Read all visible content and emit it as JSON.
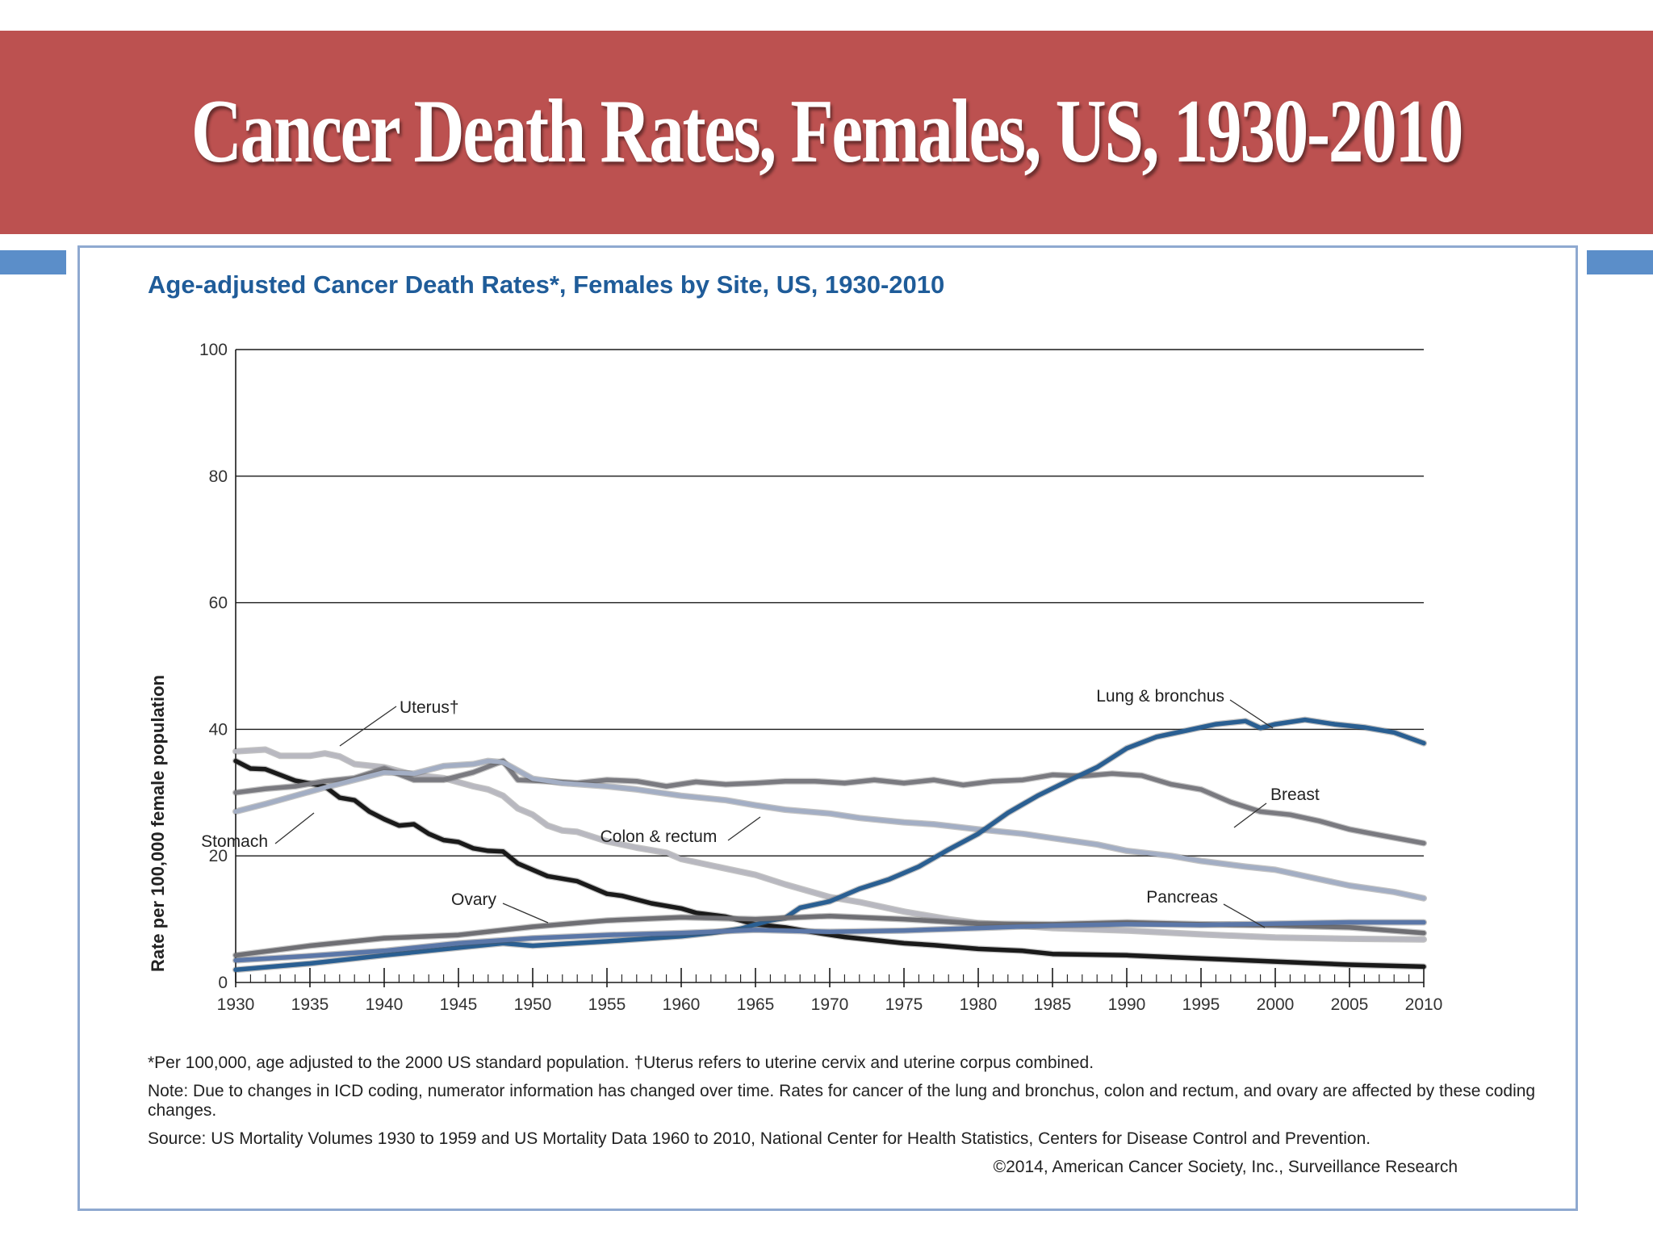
{
  "slide": {
    "title": "Cancer Death Rates, Females, US, 1930-2010",
    "colors": {
      "banner": "#bc5150",
      "accent": "#5b8ec9",
      "panel_border": "#8fa9d0",
      "chart_title": "#1f5c99"
    }
  },
  "notes": {
    "footnote": "*Per 100,000, age adjusted to the 2000 US standard population. †Uterus refers to uterine cervix and uterine corpus combined.",
    "note": "Note: Due to changes in ICD coding, numerator information has changed over time. Rates for cancer of the lung and bronchus, colon and rectum, and ovary are affected by these coding changes.",
    "source": "Source: US Mortality Volumes 1930 to 1959 and US Mortality Data 1960 to 2010, National Center for Health Statistics, Centers for Disease Control and Prevention.",
    "credit": "©2014, American Cancer Society, Inc., Surveillance Research"
  },
  "chart_data": {
    "type": "line",
    "title": "Age-adjusted Cancer Death Rates*, Females by Site, US, 1930-2010",
    "xlabel": "",
    "ylabel": "Rate per 100,000 female population",
    "xlim": [
      1930,
      2010
    ],
    "ylim": [
      0,
      100
    ],
    "grid": true,
    "x_ticks": [
      1930,
      1935,
      1940,
      1945,
      1950,
      1955,
      1960,
      1965,
      1970,
      1975,
      1980,
      1985,
      1990,
      1995,
      2000,
      2005,
      2010
    ],
    "y_ticks": [
      0,
      20,
      40,
      60,
      80,
      100
    ],
    "series": [
      {
        "name": "Uterus†",
        "color": "#b8b8c0",
        "points": [
          [
            1930,
            36.5
          ],
          [
            1932,
            36.8
          ],
          [
            1933,
            35.8
          ],
          [
            1935,
            35.8
          ],
          [
            1936,
            36.2
          ],
          [
            1937,
            35.7
          ],
          [
            1938,
            34.5
          ],
          [
            1940,
            34.0
          ],
          [
            1942,
            32.8
          ],
          [
            1944,
            32.3
          ],
          [
            1946,
            31.0
          ],
          [
            1947,
            30.5
          ],
          [
            1948,
            29.5
          ],
          [
            1949,
            27.5
          ],
          [
            1950,
            26.5
          ],
          [
            1951,
            24.8
          ],
          [
            1952,
            24.0
          ],
          [
            1953,
            23.8
          ],
          [
            1955,
            22.3
          ],
          [
            1957,
            21.3
          ],
          [
            1959,
            20.5
          ],
          [
            1960,
            19.5
          ],
          [
            1962,
            18.5
          ],
          [
            1965,
            17.0
          ],
          [
            1967,
            15.5
          ],
          [
            1970,
            13.5
          ],
          [
            1972,
            12.7
          ],
          [
            1975,
            11.2
          ],
          [
            1978,
            10.0
          ],
          [
            1980,
            9.4
          ],
          [
            1985,
            8.6
          ],
          [
            1990,
            8.2
          ],
          [
            1995,
            7.6
          ],
          [
            2000,
            7.1
          ],
          [
            2005,
            6.9
          ],
          [
            2010,
            6.8
          ]
        ]
      },
      {
        "name": "Stomach",
        "color": "#1a1a1a",
        "points": [
          [
            1930,
            35.0
          ],
          [
            1931,
            33.8
          ],
          [
            1932,
            33.7
          ],
          [
            1934,
            31.9
          ],
          [
            1936,
            31.0
          ],
          [
            1937,
            29.2
          ],
          [
            1938,
            28.8
          ],
          [
            1939,
            27.0
          ],
          [
            1940,
            25.8
          ],
          [
            1941,
            24.8
          ],
          [
            1942,
            25.0
          ],
          [
            1943,
            23.5
          ],
          [
            1944,
            22.5
          ],
          [
            1945,
            22.2
          ],
          [
            1946,
            21.2
          ],
          [
            1947,
            20.8
          ],
          [
            1948,
            20.7
          ],
          [
            1949,
            18.8
          ],
          [
            1951,
            16.8
          ],
          [
            1953,
            16.0
          ],
          [
            1955,
            14.0
          ],
          [
            1956,
            13.7
          ],
          [
            1958,
            12.5
          ],
          [
            1960,
            11.7
          ],
          [
            1961,
            11.0
          ],
          [
            1963,
            10.4
          ],
          [
            1965,
            9.2
          ],
          [
            1967,
            8.7
          ],
          [
            1969,
            7.9
          ],
          [
            1971,
            7.2
          ],
          [
            1973,
            6.7
          ],
          [
            1975,
            6.2
          ],
          [
            1977,
            5.9
          ],
          [
            1980,
            5.3
          ],
          [
            1983,
            5.0
          ],
          [
            1985,
            4.5
          ],
          [
            1990,
            4.3
          ],
          [
            1995,
            3.8
          ],
          [
            2000,
            3.3
          ],
          [
            2005,
            2.8
          ],
          [
            2010,
            2.5
          ]
        ]
      },
      {
        "name": "Breast",
        "color": "#7a7a80",
        "points": [
          [
            1930,
            30.0
          ],
          [
            1932,
            30.6
          ],
          [
            1934,
            31.0
          ],
          [
            1936,
            31.8
          ],
          [
            1938,
            32.3
          ],
          [
            1940,
            33.8
          ],
          [
            1942,
            32.0
          ],
          [
            1944,
            32.0
          ],
          [
            1946,
            33.2
          ],
          [
            1948,
            35.0
          ],
          [
            1949,
            32.0
          ],
          [
            1951,
            31.8
          ],
          [
            1953,
            31.5
          ],
          [
            1955,
            32.0
          ],
          [
            1957,
            31.8
          ],
          [
            1959,
            31.0
          ],
          [
            1961,
            31.7
          ],
          [
            1963,
            31.3
          ],
          [
            1965,
            31.5
          ],
          [
            1967,
            31.8
          ],
          [
            1969,
            31.8
          ],
          [
            1971,
            31.5
          ],
          [
            1973,
            32.0
          ],
          [
            1975,
            31.5
          ],
          [
            1977,
            32.0
          ],
          [
            1979,
            31.2
          ],
          [
            1981,
            31.8
          ],
          [
            1983,
            32.0
          ],
          [
            1985,
            32.8
          ],
          [
            1987,
            32.6
          ],
          [
            1989,
            33.0
          ],
          [
            1991,
            32.7
          ],
          [
            1993,
            31.3
          ],
          [
            1995,
            30.5
          ],
          [
            1997,
            28.5
          ],
          [
            1999,
            27.0
          ],
          [
            2001,
            26.5
          ],
          [
            2003,
            25.5
          ],
          [
            2005,
            24.2
          ],
          [
            2007,
            23.3
          ],
          [
            2010,
            22.0
          ]
        ]
      },
      {
        "name": "Colon & rectum",
        "color": "#a3aec4",
        "points": [
          [
            1930,
            27.0
          ],
          [
            1932,
            28.2
          ],
          [
            1934,
            29.5
          ],
          [
            1936,
            30.8
          ],
          [
            1938,
            32.0
          ],
          [
            1940,
            33.2
          ],
          [
            1942,
            33.0
          ],
          [
            1944,
            34.2
          ],
          [
            1946,
            34.5
          ],
          [
            1947,
            35.0
          ],
          [
            1948,
            34.8
          ],
          [
            1950,
            32.2
          ],
          [
            1952,
            31.5
          ],
          [
            1955,
            31.0
          ],
          [
            1957,
            30.5
          ],
          [
            1960,
            29.5
          ],
          [
            1963,
            28.8
          ],
          [
            1965,
            28.0
          ],
          [
            1967,
            27.3
          ],
          [
            1970,
            26.7
          ],
          [
            1972,
            26.0
          ],
          [
            1975,
            25.3
          ],
          [
            1977,
            25.0
          ],
          [
            1980,
            24.2
          ],
          [
            1983,
            23.5
          ],
          [
            1985,
            22.8
          ],
          [
            1988,
            21.8
          ],
          [
            1990,
            20.8
          ],
          [
            1993,
            20.0
          ],
          [
            1995,
            19.2
          ],
          [
            1998,
            18.3
          ],
          [
            2000,
            17.8
          ],
          [
            2003,
            16.3
          ],
          [
            2005,
            15.3
          ],
          [
            2008,
            14.3
          ],
          [
            2010,
            13.3
          ]
        ]
      },
      {
        "name": "Lung & bronchus",
        "color": "#2a5f92",
        "points": [
          [
            1930,
            2.0
          ],
          [
            1935,
            3.0
          ],
          [
            1940,
            4.3
          ],
          [
            1945,
            5.5
          ],
          [
            1948,
            6.2
          ],
          [
            1950,
            5.8
          ],
          [
            1955,
            6.5
          ],
          [
            1960,
            7.3
          ],
          [
            1962,
            7.8
          ],
          [
            1964,
            8.5
          ],
          [
            1966,
            9.8
          ],
          [
            1967,
            10.2
          ],
          [
            1968,
            11.8
          ],
          [
            1970,
            12.8
          ],
          [
            1972,
            14.8
          ],
          [
            1974,
            16.3
          ],
          [
            1976,
            18.3
          ],
          [
            1978,
            21.0
          ],
          [
            1980,
            23.5
          ],
          [
            1982,
            26.8
          ],
          [
            1984,
            29.5
          ],
          [
            1986,
            31.8
          ],
          [
            1988,
            34.0
          ],
          [
            1990,
            37.0
          ],
          [
            1992,
            38.8
          ],
          [
            1994,
            39.8
          ],
          [
            1996,
            40.8
          ],
          [
            1998,
            41.3
          ],
          [
            1999,
            40.2
          ],
          [
            2000,
            40.8
          ],
          [
            2002,
            41.5
          ],
          [
            2004,
            40.8
          ],
          [
            2006,
            40.3
          ],
          [
            2008,
            39.5
          ],
          [
            2010,
            37.8
          ]
        ]
      },
      {
        "name": "Ovary",
        "color": "#6f6f74",
        "points": [
          [
            1930,
            4.3
          ],
          [
            1935,
            5.8
          ],
          [
            1940,
            7.0
          ],
          [
            1945,
            7.5
          ],
          [
            1950,
            8.8
          ],
          [
            1955,
            9.8
          ],
          [
            1960,
            10.3
          ],
          [
            1965,
            10.0
          ],
          [
            1970,
            10.5
          ],
          [
            1975,
            10.0
          ],
          [
            1980,
            9.3
          ],
          [
            1985,
            9.2
          ],
          [
            1990,
            9.5
          ],
          [
            1995,
            9.2
          ],
          [
            2000,
            9.0
          ],
          [
            2005,
            8.7
          ],
          [
            2010,
            7.8
          ]
        ]
      },
      {
        "name": "Pancreas",
        "color": "#5b77a8",
        "points": [
          [
            1930,
            3.5
          ],
          [
            1935,
            4.2
          ],
          [
            1940,
            5.0
          ],
          [
            1945,
            6.2
          ],
          [
            1950,
            7.0
          ],
          [
            1955,
            7.5
          ],
          [
            1960,
            7.8
          ],
          [
            1965,
            8.3
          ],
          [
            1970,
            8.0
          ],
          [
            1975,
            8.2
          ],
          [
            1980,
            8.6
          ],
          [
            1985,
            9.0
          ],
          [
            1990,
            9.2
          ],
          [
            1995,
            9.1
          ],
          [
            2000,
            9.3
          ],
          [
            2005,
            9.5
          ],
          [
            2010,
            9.5
          ]
        ]
      }
    ],
    "annotations": [
      {
        "label": "Uterus†",
        "series": "Uterus†"
      },
      {
        "label": "Stomach",
        "series": "Stomach"
      },
      {
        "label": "Colon & rectum",
        "series": "Colon & rectum"
      },
      {
        "label": "Ovary",
        "series": "Ovary"
      },
      {
        "label": "Lung & bronchus",
        "series": "Lung & bronchus"
      },
      {
        "label": "Breast",
        "series": "Breast"
      },
      {
        "label": "Pancreas",
        "series": "Pancreas"
      }
    ]
  }
}
